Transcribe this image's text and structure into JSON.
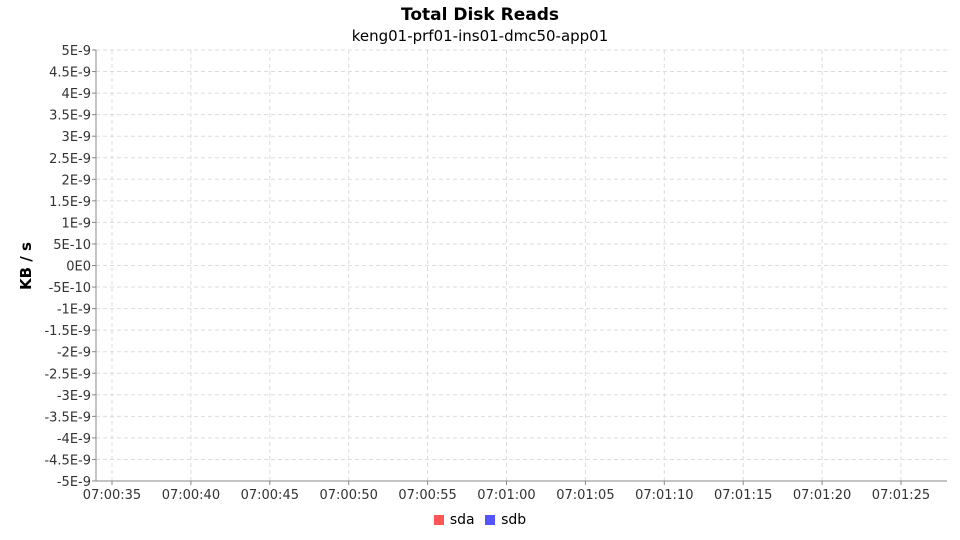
{
  "chart_data": {
    "type": "line",
    "title": "Total Disk Reads",
    "subtitle": "keng01-prf01-ins01-dmc50-app01",
    "ylabel": "KB / s",
    "xlabel": "",
    "ylim": [
      -5e-09,
      5e-09
    ],
    "y_ticks": [
      "5E-9",
      "4.5E-9",
      "4E-9",
      "3.5E-9",
      "3E-9",
      "2.5E-9",
      "2E-9",
      "1.5E-9",
      "1E-9",
      "5E-10",
      "0E0",
      "-5E-10",
      "-1E-9",
      "-1.5E-9",
      "-2E-9",
      "-2.5E-9",
      "-3E-9",
      "-3.5E-9",
      "-4E-9",
      "-4.5E-9",
      "-5E-9"
    ],
    "x_ticks": [
      "07:00:35",
      "07:00:40",
      "07:00:45",
      "07:00:50",
      "07:00:55",
      "07:01:00",
      "07:01:05",
      "07:01:10",
      "07:01:15",
      "07:01:20",
      "07:01:25"
    ],
    "grid": true,
    "legend_placement": "bottom",
    "series": [
      {
        "name": "sda",
        "color": "#ff5555",
        "values": []
      },
      {
        "name": "sdb",
        "color": "#5555ff",
        "values": []
      }
    ]
  }
}
